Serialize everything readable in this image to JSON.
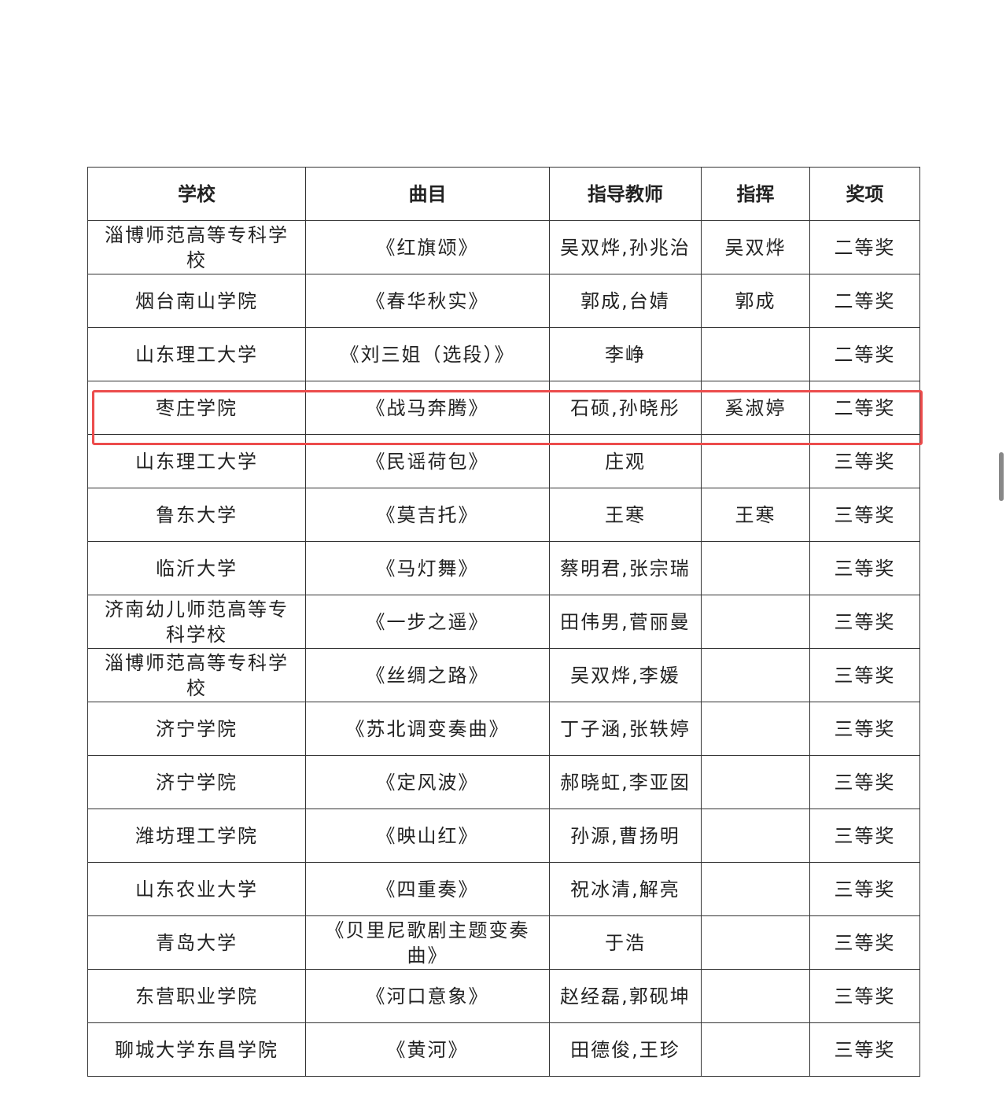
{
  "table": {
    "header": [
      "学校",
      "曲目",
      "指导教师",
      "指挥",
      "奖项"
    ],
    "rows": [
      [
        "淄博师范高等专科学校",
        "《红旗颂》",
        "吴双烨,孙兆治",
        "吴双烨",
        "二等奖"
      ],
      [
        "烟台南山学院",
        "《春华秋实》",
        "郭成,台婧",
        "郭成",
        "二等奖"
      ],
      [
        "山东理工大学",
        "《刘三姐（选段）》",
        "李峥",
        null,
        "二等奖"
      ],
      [
        "枣庄学院",
        "《战马奔腾》",
        "石硕,孙晓彤",
        "奚淑婷",
        "二等奖"
      ],
      [
        "山东理工大学",
        "《民谣荷包》",
        "庄观",
        null,
        "三等奖"
      ],
      [
        "鲁东大学",
        "《莫吉托》",
        "王寒",
        "王寒",
        "三等奖"
      ],
      [
        "临沂大学",
        "《马灯舞》",
        "蔡明君,张宗瑞",
        null,
        "三等奖"
      ],
      [
        "济南幼儿师范高等专科学校",
        "《一步之遥》",
        "田伟男,菅丽曼",
        null,
        "三等奖"
      ],
      [
        "淄博师范高等专科学校",
        "《丝绸之路》",
        "吴双烨,李媛",
        null,
        "三等奖"
      ],
      [
        "济宁学院",
        "《苏北调变奏曲》",
        "丁子涵,张轶婷",
        null,
        "三等奖"
      ],
      [
        "济宁学院",
        "《定风波》",
        "郝晓虹,李亚囡",
        null,
        "三等奖"
      ],
      [
        "潍坊理工学院",
        "《映山红》",
        "孙源,曹扬明",
        null,
        "三等奖"
      ],
      [
        "山东农业大学",
        "《四重奏》",
        "祝冰清,解亮",
        null,
        "三等奖"
      ],
      [
        "青岛大学",
        "《贝里尼歌剧主题变奏曲》",
        "于浩",
        null,
        "三等奖"
      ],
      [
        "东营职业学院",
        "《河口意象》",
        "赵经磊,郭砚坤",
        null,
        "三等奖"
      ],
      [
        "聊城大学东昌学院",
        "《黄河》",
        "田德俊,王珍",
        null,
        "三等奖"
      ]
    ]
  }
}
